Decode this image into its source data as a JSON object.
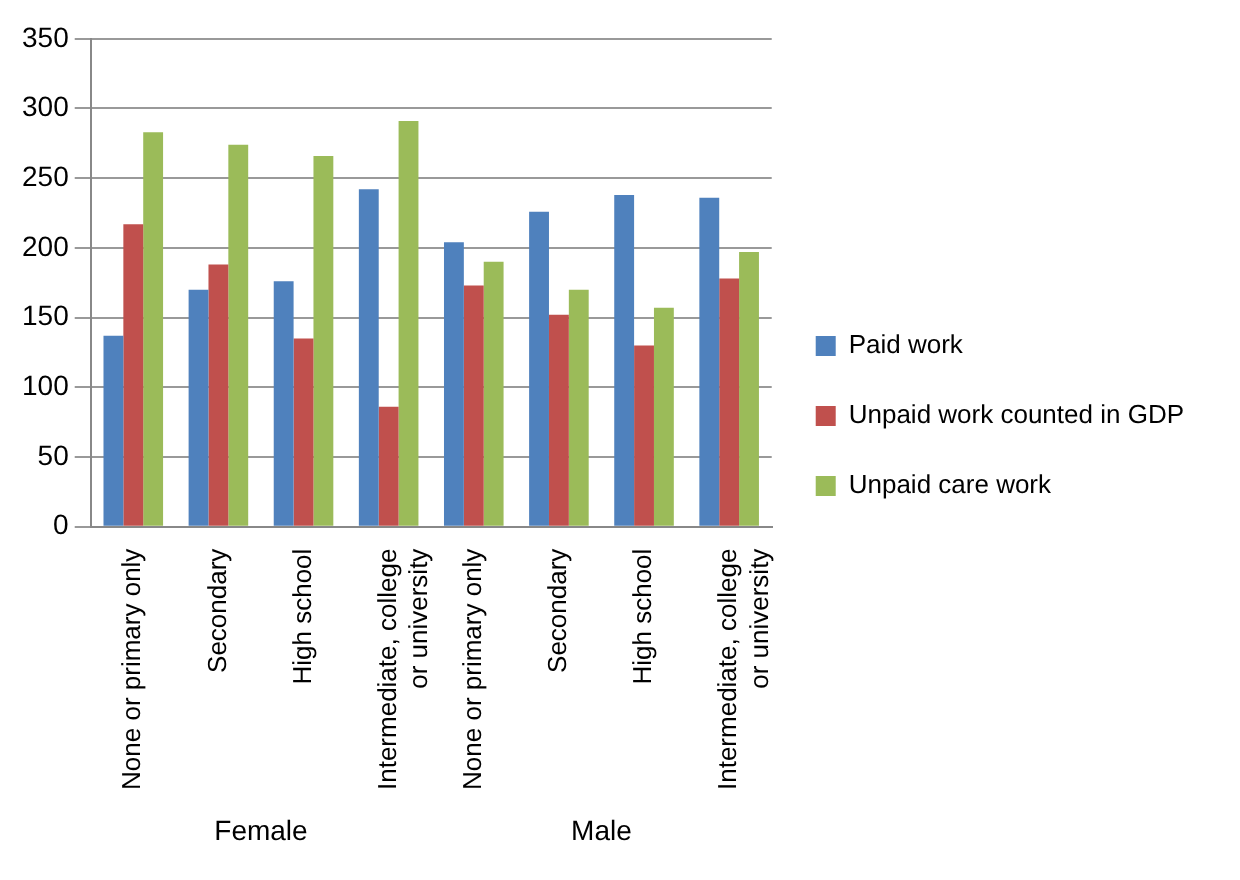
{
  "chart_data": {
    "type": "bar",
    "categories": [
      "None or primary only",
      "Secondary",
      "High school",
      "Intermediate, college or university",
      "None or primary only",
      "Secondary",
      "High school",
      "Intermediate, college or university"
    ],
    "series": [
      {
        "name": "Paid work",
        "color": "#4f81bd",
        "values": [
          137,
          170,
          176,
          242,
          204,
          226,
          238,
          236
        ]
      },
      {
        "name": "Unpaid work counted in GDP",
        "color": "#c0504d",
        "values": [
          217,
          188,
          135,
          86,
          173,
          152,
          130,
          178
        ]
      },
      {
        "name": "Unpaid care work",
        "color": "#9bbb59",
        "values": [
          283,
          274,
          266,
          291,
          190,
          170,
          157,
          197
        ]
      }
    ],
    "annotations": [
      "Female",
      "Male"
    ],
    "ylim": [
      0,
      350
    ],
    "yticks": [
      0,
      50,
      100,
      150,
      200,
      250,
      300,
      350
    ],
    "grid": "y",
    "legend": "right"
  }
}
